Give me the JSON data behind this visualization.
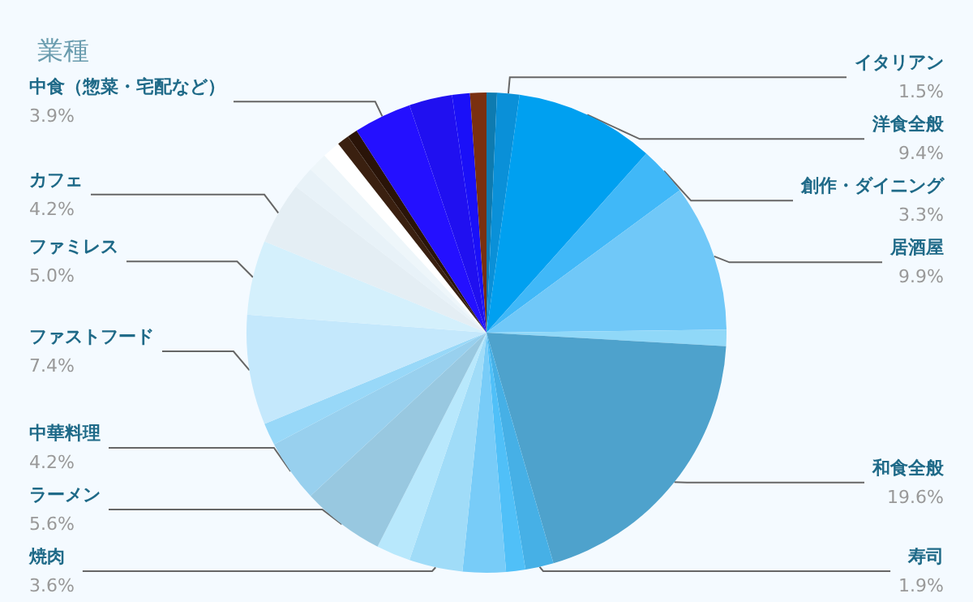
{
  "chart_data": {
    "type": "pie",
    "title": "業種",
    "categories": [
      null,
      "イタリアン",
      "洋食全般",
      "創作・ダイニング",
      "居酒屋",
      null,
      "和食全般",
      "寿司",
      null,
      null,
      "焼肉",
      null,
      "ラーメン",
      "中華料理",
      null,
      "ファストフード",
      "ファミレス",
      "カフェ",
      null,
      null,
      null,
      null,
      null,
      "中食（惣菜・宅配など）",
      null,
      null,
      null
    ],
    "values": [
      0.7,
      1.5,
      9.4,
      3.3,
      9.9,
      1.1,
      19.6,
      1.9,
      1.3,
      2.9,
      3.6,
      2.3,
      5.6,
      4.2,
      1.5,
      7.4,
      5.0,
      4.2,
      1.5,
      1.3,
      1.2,
      0.8,
      0.7,
      3.9,
      2.9,
      1.2,
      1.1
    ],
    "value_labels": [
      null,
      "1.5%",
      "9.4%",
      "3.3%",
      "9.9%",
      null,
      "19.6%",
      "1.9%",
      null,
      null,
      "3.6%",
      null,
      "5.6%",
      "4.2%",
      null,
      "7.4%",
      "5.0%",
      "4.2%",
      null,
      null,
      null,
      null,
      null,
      "3.9%",
      null,
      null,
      null
    ],
    "colors": [
      "#0e7bb0",
      "#0a90d8",
      "#00a0f0",
      "#40b8f8",
      "#70c8f8",
      "#90d8f8",
      "#4ea2cc",
      "#46b0e6",
      "#50c0f8",
      "#78ccf8",
      "#a0dcf8",
      "#b8e8fc",
      "#98c8e0",
      "#98d0ee",
      "#98d8f8",
      "#c4e8fc",
      "#d4f0fc",
      "#e4eef4",
      "#e8f2f8",
      "#eef6fa",
      "#ffffff",
      "#3a2010",
      "#2a1408",
      "#2410ff",
      "#2010f0",
      "#1a10f8",
      "#7a3010"
    ],
    "legend": false
  }
}
